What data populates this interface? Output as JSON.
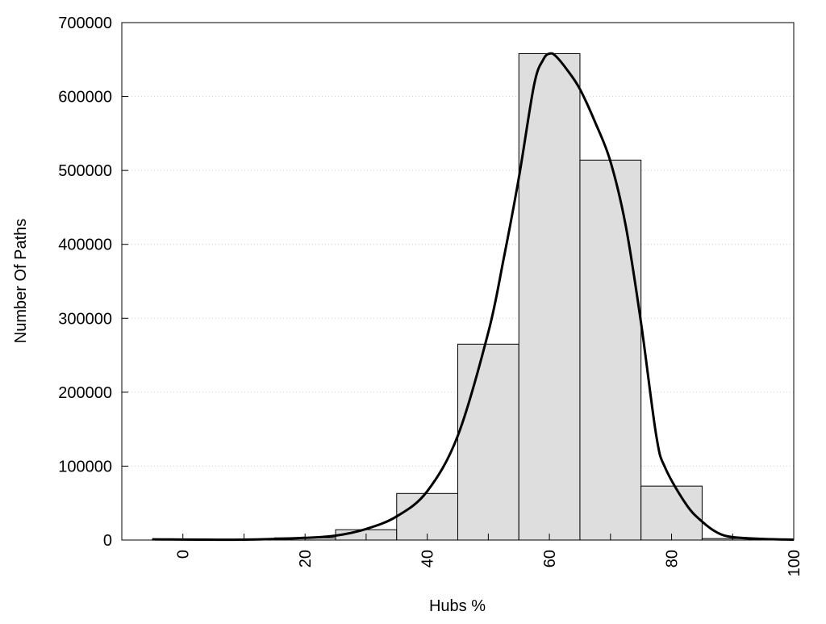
{
  "chart_data": {
    "type": "bar",
    "title": "",
    "xlabel": "Hubs %",
    "ylabel": "Number Of Paths",
    "xlim": [
      -10,
      100
    ],
    "ylim": [
      0,
      700000
    ],
    "x_ticks": [
      0,
      20,
      40,
      60,
      80,
      100
    ],
    "x_minor_ticks": [
      10,
      30,
      50,
      70,
      90
    ],
    "y_ticks": [
      0,
      100000,
      200000,
      300000,
      400000,
      500000,
      600000,
      700000
    ],
    "grid": "horizontal-dotted",
    "bar_width": 10,
    "bars": {
      "centers": [
        0,
        10,
        20,
        30,
        40,
        50,
        60,
        70,
        80,
        90
      ],
      "values": [
        1000,
        1000,
        3000,
        14000,
        63000,
        265000,
        658000,
        514000,
        73000,
        2000
      ]
    },
    "curve": {
      "x": [
        -5,
        10,
        20,
        25,
        30,
        35,
        40,
        45,
        50,
        52.5,
        55,
        57.5,
        59,
        60,
        61,
        63,
        65,
        67.5,
        70,
        72.5,
        75,
        77.5,
        79,
        82.5,
        85,
        87.5,
        90,
        95,
        100
      ],
      "y": [
        1000,
        500,
        3000,
        6000,
        15000,
        32000,
        66000,
        141000,
        281000,
        380000,
        490000,
        616000,
        650000,
        658000,
        655000,
        635000,
        610000,
        565000,
        512000,
        425000,
        294000,
        141000,
        97000,
        47000,
        25000,
        10000,
        4000,
        1500,
        500
      ]
    },
    "colors": {
      "bar_fill": "#dedede",
      "bar_stroke": "#000000",
      "curve": "#000000",
      "grid": "#cccccc"
    }
  }
}
